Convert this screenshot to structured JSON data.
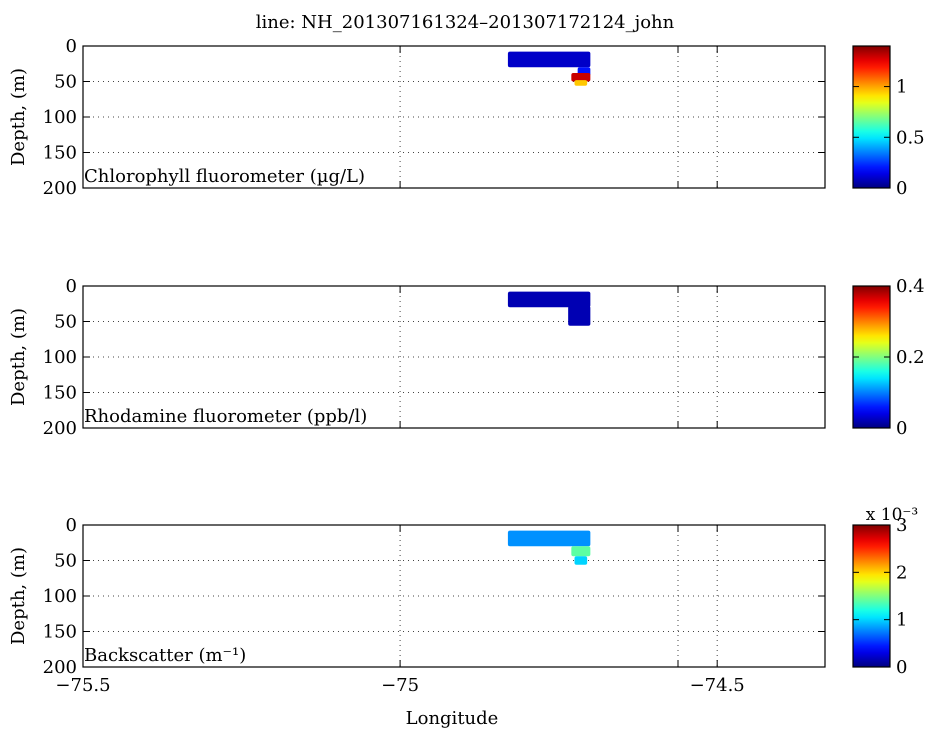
{
  "figure": {
    "title": "line: NH_201307161324–201307172124_john",
    "xlabel": "Longitude",
    "ylabel": "Depth, (m)"
  },
  "chart_data": [
    {
      "type": "heatmap",
      "panel_label": "Chlorophyll fluorometer (µg/L)",
      "xlim": [
        -75.5,
        -74.33
      ],
      "xticks": [
        -75.5,
        -75,
        -74.5
      ],
      "xtick_labels": [
        "−75.5",
        "−75",
        "−74.5"
      ],
      "ylim": [
        0,
        200
      ],
      "y_reversed": true,
      "yticks": [
        0,
        50,
        100,
        150,
        200
      ],
      "ytick_labels": [
        "0",
        "50",
        "100",
        "150",
        "200"
      ],
      "grid": true,
      "colormap": "jet",
      "colorbar": {
        "min": 0,
        "max": 1.4,
        "ticks": [
          0,
          0.5,
          1
        ],
        "tick_labels": [
          "0",
          "0.5",
          "1"
        ],
        "exponent_label": ""
      },
      "patches": [
        {
          "lon_min": -74.83,
          "lon_max": -74.7,
          "depth_min": 8,
          "depth_max": 30,
          "value": 0.1
        },
        {
          "lon_min": -74.72,
          "lon_max": -74.7,
          "depth_min": 30,
          "depth_max": 42,
          "value": 0.2
        },
        {
          "lon_min": -74.73,
          "lon_max": -74.7,
          "depth_min": 38,
          "depth_max": 50,
          "value": 1.3
        },
        {
          "lon_min": -74.725,
          "lon_max": -74.705,
          "depth_min": 48,
          "depth_max": 56,
          "value": 0.95
        }
      ]
    },
    {
      "type": "heatmap",
      "panel_label": "Rhodamine fluorometer (ppb/l)",
      "xlim": [
        -75.5,
        -74.33
      ],
      "xticks": [
        -75.5,
        -75,
        -74.5
      ],
      "xtick_labels": [
        "−75.5",
        "−75",
        "−74.5"
      ],
      "ylim": [
        0,
        200
      ],
      "y_reversed": true,
      "yticks": [
        0,
        50,
        100,
        150,
        200
      ],
      "ytick_labels": [
        "0",
        "50",
        "100",
        "150",
        "200"
      ],
      "grid": true,
      "colormap": "jet",
      "colorbar": {
        "min": 0,
        "max": 0.4,
        "ticks": [
          0,
          0.2,
          0.4
        ],
        "tick_labels": [
          "0",
          "0.2",
          "0.4"
        ],
        "exponent_label": ""
      },
      "patches": [
        {
          "lon_min": -74.83,
          "lon_max": -74.7,
          "depth_min": 8,
          "depth_max": 30,
          "value": 0.02
        },
        {
          "lon_min": -74.735,
          "lon_max": -74.7,
          "depth_min": 28,
          "depth_max": 56,
          "value": 0.02
        }
      ]
    },
    {
      "type": "heatmap",
      "panel_label": "Backscatter (m⁻¹)",
      "xlim": [
        -75.5,
        -74.33
      ],
      "xticks": [
        -75.5,
        -75,
        -74.5
      ],
      "xtick_labels": [
        "−75.5",
        "−75",
        "−74.5"
      ],
      "ylim": [
        0,
        200
      ],
      "y_reversed": true,
      "yticks": [
        0,
        50,
        100,
        150,
        200
      ],
      "ytick_labels": [
        "0",
        "50",
        "100",
        "150",
        "200"
      ],
      "grid": true,
      "colormap": "jet",
      "colorbar": {
        "min": 0,
        "max": 3,
        "ticks": [
          0,
          1,
          2,
          3
        ],
        "tick_labels": [
          "0",
          "1",
          "2",
          "3"
        ],
        "exponent_label": "x 10⁻³"
      },
      "patches": [
        {
          "lon_min": -74.83,
          "lon_max": -74.7,
          "depth_min": 8,
          "depth_max": 30,
          "value": 0.8
        },
        {
          "lon_min": -74.73,
          "lon_max": -74.7,
          "depth_min": 30,
          "depth_max": 44,
          "value": 1.4
        },
        {
          "lon_min": -74.725,
          "lon_max": -74.705,
          "depth_min": 44,
          "depth_max": 56,
          "value": 1.0
        }
      ]
    }
  ]
}
